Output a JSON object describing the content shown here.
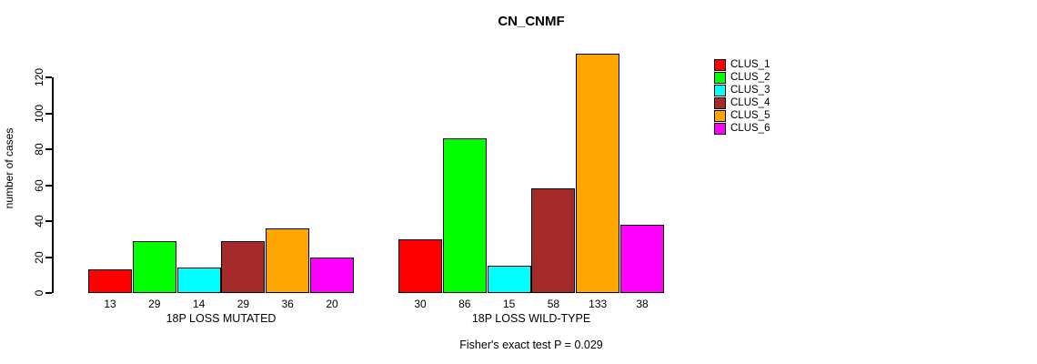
{
  "title": "CN_CNMF",
  "annotation": "Fisher's exact test P = 0.029",
  "chart_data": {
    "type": "bar",
    "title": "CN_CNMF",
    "xlabel": "",
    "ylabel": "number of cases",
    "ylim": [
      0,
      133
    ],
    "yticks": [
      0,
      20,
      40,
      60,
      80,
      100,
      120
    ],
    "grid": false,
    "legend_position": "right",
    "bar_border_color": "#000000",
    "categories": [
      "18P LOSS MUTATED",
      "18P LOSS WILD-TYPE"
    ],
    "groups": [
      {
        "label": "18P LOSS MUTATED",
        "values": [
          13,
          29,
          14,
          29,
          36,
          20
        ]
      },
      {
        "label": "18P LOSS WILD-TYPE",
        "values": [
          30,
          86,
          15,
          58,
          133,
          38
        ]
      }
    ],
    "series": [
      {
        "name": "CLUS_1",
        "color": "#FF0000",
        "values": [
          13,
          30
        ]
      },
      {
        "name": "CLUS_2",
        "color": "#00FF00",
        "values": [
          29,
          86
        ]
      },
      {
        "name": "CLUS_3",
        "color": "#00FFFF",
        "values": [
          14,
          15
        ]
      },
      {
        "name": "CLUS_4",
        "color": "#A52A2A",
        "values": [
          29,
          58
        ]
      },
      {
        "name": "CLUS_5",
        "color": "#FFA500",
        "values": [
          36,
          133
        ]
      },
      {
        "name": "CLUS_6",
        "color": "#FF00FF",
        "values": [
          20,
          38
        ]
      }
    ],
    "annotation": "Fisher's exact test P = 0.029"
  }
}
